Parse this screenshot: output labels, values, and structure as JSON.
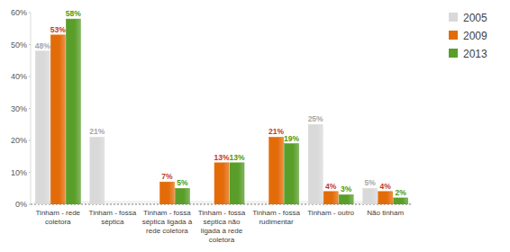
{
  "chart_data": {
    "type": "bar",
    "categories": [
      "Tinham - rede coletora",
      "Tinham - fossa séptica",
      "Tinham - fossa séptica ligada à rede coletora",
      "Tinham - fossa séptica não ligada à rede coletora",
      "Tinham - fossa rudimentar",
      "Tinham - outro",
      "Não tinham"
    ],
    "series": [
      {
        "name": "2005",
        "color": "#d9d9d9",
        "values": [
          48,
          21,
          null,
          null,
          null,
          25,
          5
        ],
        "value_labels": [
          "48%",
          "21%",
          null,
          null,
          null,
          "25%",
          "5%"
        ]
      },
      {
        "name": "2009",
        "color": "#e36c09",
        "values": [
          53,
          null,
          7,
          13,
          21,
          4,
          4
        ],
        "value_labels": [
          "53%",
          null,
          "7%",
          "13%",
          "21%",
          "4%",
          "4%"
        ]
      },
      {
        "name": "2013",
        "color": "#5a9e2a",
        "values": [
          58,
          null,
          5,
          13,
          19,
          3,
          2
        ],
        "value_labels": [
          "58%",
          null,
          "5%",
          "13%",
          "19%",
          "3%",
          "2%"
        ]
      }
    ],
    "ylim": [
      0,
      60
    ],
    "yticks": [
      {
        "value": 0,
        "label": "0%"
      },
      {
        "value": 10,
        "label": "10%"
      },
      {
        "value": 20,
        "label": "20%"
      },
      {
        "value": 30,
        "label": "30%"
      },
      {
        "value": 40,
        "label": "40%"
      },
      {
        "value": 50,
        "label": "50%"
      },
      {
        "value": 60,
        "label": "60%"
      }
    ],
    "grid": false,
    "legend": "right",
    "data_labels": true
  }
}
